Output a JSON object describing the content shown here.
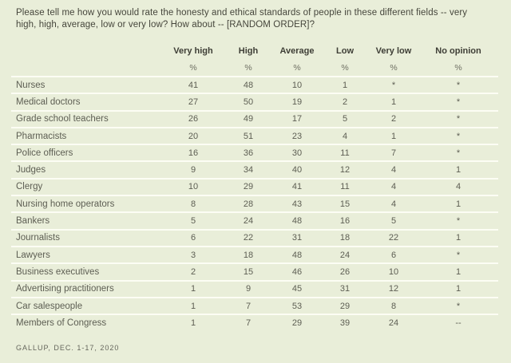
{
  "question": "Please tell me how you would rate the honesty and ethical standards of people in these different fields -- very high, high, average, low or very low? How about -- [RANDOM ORDER]?",
  "source": "GALLUP, DEC. 1-17, 2020",
  "colors": {
    "background": "#e9eed9",
    "row_separator": "#fcfdf4",
    "question_text": "#46463c",
    "header_text": "#3e3e36",
    "cell_text": "#5d5e53",
    "source_text": "#65665c"
  },
  "chart_data": {
    "type": "table",
    "title": "Honesty and ethical standards ratings by field",
    "columns": [
      "Very high",
      "High",
      "Average",
      "Low",
      "Very low",
      "No opinion"
    ],
    "unit_row": [
      "%",
      "%",
      "%",
      "%",
      "%",
      "%"
    ],
    "rows": [
      {
        "label": "Nurses",
        "values": [
          "41",
          "48",
          "10",
          "1",
          "*",
          "*"
        ]
      },
      {
        "label": "Medical doctors",
        "values": [
          "27",
          "50",
          "19",
          "2",
          "1",
          "*"
        ]
      },
      {
        "label": "Grade school teachers",
        "values": [
          "26",
          "49",
          "17",
          "5",
          "2",
          "*"
        ]
      },
      {
        "label": "Pharmacists",
        "values": [
          "20",
          "51",
          "23",
          "4",
          "1",
          "*"
        ]
      },
      {
        "label": "Police officers",
        "values": [
          "16",
          "36",
          "30",
          "11",
          "7",
          "*"
        ]
      },
      {
        "label": "Judges",
        "values": [
          "9",
          "34",
          "40",
          "12",
          "4",
          "1"
        ]
      },
      {
        "label": "Clergy",
        "values": [
          "10",
          "29",
          "41",
          "11",
          "4",
          "4"
        ]
      },
      {
        "label": "Nursing home operators",
        "values": [
          "8",
          "28",
          "43",
          "15",
          "4",
          "1"
        ]
      },
      {
        "label": "Bankers",
        "values": [
          "5",
          "24",
          "48",
          "16",
          "5",
          "*"
        ]
      },
      {
        "label": "Journalists",
        "values": [
          "6",
          "22",
          "31",
          "18",
          "22",
          "1"
        ]
      },
      {
        "label": "Lawyers",
        "values": [
          "3",
          "18",
          "48",
          "24",
          "6",
          "*"
        ]
      },
      {
        "label": "Business executives",
        "values": [
          "2",
          "15",
          "46",
          "26",
          "10",
          "1"
        ]
      },
      {
        "label": "Advertising practitioners",
        "values": [
          "1",
          "9",
          "45",
          "31",
          "12",
          "1"
        ]
      },
      {
        "label": "Car salespeople",
        "values": [
          "1",
          "7",
          "53",
          "29",
          "8",
          "*"
        ]
      },
      {
        "label": "Members of Congress",
        "values": [
          "1",
          "7",
          "29",
          "39",
          "24",
          "--"
        ]
      }
    ]
  }
}
